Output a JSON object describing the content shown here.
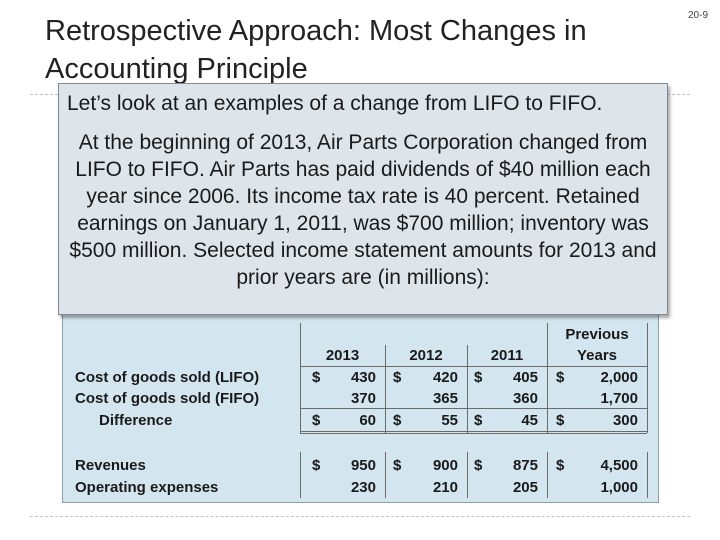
{
  "slide": {
    "title_line1": "Retrospective Approach: Most Changes in",
    "title_line2": "Accounting Principle",
    "page_number": "20-9"
  },
  "callout": {
    "intro": "Let’s look at an examples of a change from LIFO to FIFO.",
    "paragraph": "At the beginning of 2013,  Air Parts Corporation changed from LIFO to FIFO.  Air Parts has paid dividends of $40 million each year since 2006.  Its income tax rate is 40 percent. Retained earnings on January 1, 2011, was $700 million; inventory was $500 million.  Selected income statement amounts for 2013 and prior years are (in millions):"
  },
  "table": {
    "headers": [
      "2013",
      "2012",
      "2011",
      "Previous",
      "Years"
    ],
    "rows": [
      {
        "label": "Cost of goods sold (LIFO)",
        "dollar": "$",
        "values": [
          "430",
          "420",
          "405",
          "2,000"
        ]
      },
      {
        "label": "Cost of goods sold (FIFO)",
        "dollar": "",
        "values": [
          "370",
          "365",
          "360",
          "1,700"
        ]
      },
      {
        "label": "Difference",
        "dollar": "$",
        "values": [
          "60",
          "55",
          "45",
          "300"
        ]
      },
      {
        "label": "Revenues",
        "dollar": "$",
        "values": [
          "950",
          "900",
          "875",
          "4,500"
        ]
      },
      {
        "label": "Operating expenses",
        "dollar": "",
        "values": [
          "230",
          "210",
          "205",
          "1,000"
        ]
      }
    ]
  }
}
